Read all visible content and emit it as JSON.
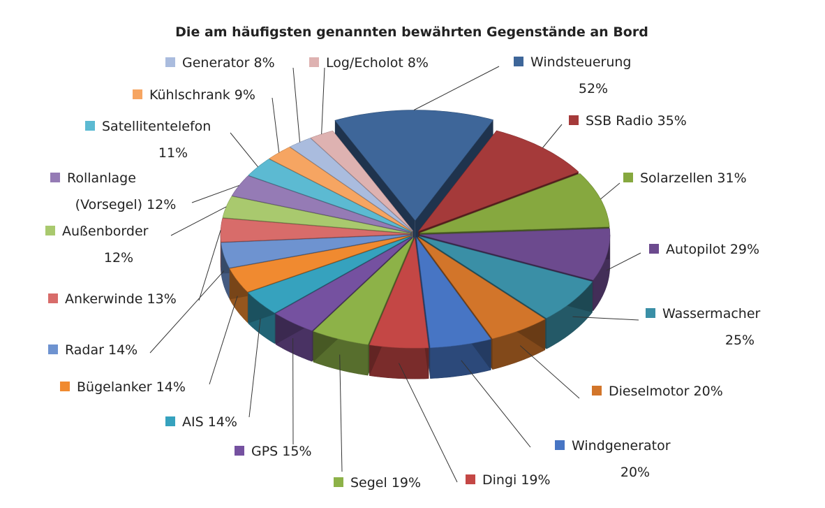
{
  "chart_data": {
    "type": "pie",
    "style": "3d-exploded",
    "title": "Die am häufigsten genannten bewährten Gegenstände an Bord",
    "unit": "%",
    "slices": [
      {
        "label": "Windsteuerung",
        "value": 52,
        "color": "#3E6699"
      },
      {
        "label": "SSB Radio",
        "value": 35,
        "color": "#A53A3A"
      },
      {
        "label": "Solarzellen",
        "value": 31,
        "color": "#86A83F"
      },
      {
        "label": "Autopilot",
        "value": 29,
        "color": "#6C4A8E"
      },
      {
        "label": "Wassermacher",
        "value": 25,
        "color": "#3A8FA6"
      },
      {
        "label": "Dieselmotor",
        "value": 20,
        "color": "#D2752A"
      },
      {
        "label": "Windgenerator",
        "value": 20,
        "color": "#4775C4"
      },
      {
        "label": "Dingi",
        "value": 19,
        "color": "#C44745"
      },
      {
        "label": "Segel",
        "value": 19,
        "color": "#8DB248"
      },
      {
        "label": "GPS",
        "value": 15,
        "color": "#7551A0"
      },
      {
        "label": "AIS",
        "value": 14,
        "color": "#36A2BE"
      },
      {
        "label": "Bügelanker",
        "value": 14,
        "color": "#F08A30"
      },
      {
        "label": "Radar",
        "value": 14,
        "color": "#6E93D0"
      },
      {
        "label": "Ankerwinde",
        "value": 13,
        "color": "#D86C6A"
      },
      {
        "label": "Außenborder",
        "value": 12,
        "color": "#A9C96E"
      },
      {
        "label": "Rollanlage (Vorsegel)",
        "value": 12,
        "color": "#957BB5"
      },
      {
        "label": "Satellitentelefon",
        "value": 11,
        "color": "#5CBAD2"
      },
      {
        "label": "Kühlschrank",
        "value": 9,
        "color": "#F6A562"
      },
      {
        "label": "Generator",
        "value": 8,
        "color": "#AABCDE"
      },
      {
        "label": "Log/Echolot",
        "value": 8,
        "color": "#DEB2B1"
      }
    ]
  }
}
